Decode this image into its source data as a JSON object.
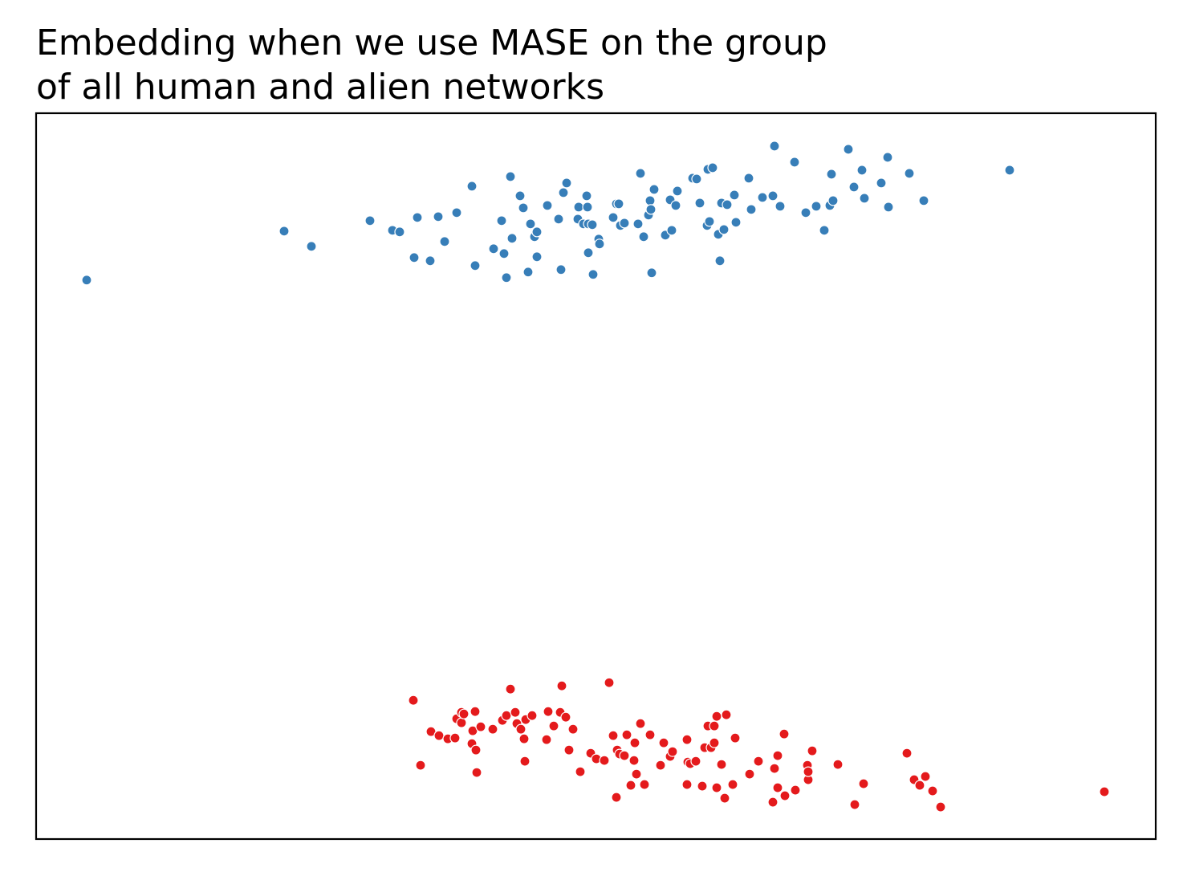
{
  "chart_data": {
    "type": "scatter",
    "title_lines": [
      "Embedding when we use MASE on the group",
      "of all human and alien networks"
    ],
    "xlabel": "",
    "ylabel": "",
    "xlim": [
      45,
      1440
    ],
    "ylim": [
      -1045,
      -140
    ],
    "grid": false,
    "show_ticks": false,
    "colors": {
      "human": "#377eb8",
      "alien": "#e41a1c",
      "frame": "#000000",
      "point_edge": "#ffffff"
    },
    "series": [
      {
        "color_key": "human",
        "points": [
          [
            108,
            -348
          ],
          [
            354,
            -287
          ],
          [
            388,
            -306
          ],
          [
            461,
            -274
          ],
          [
            489,
            -286
          ],
          [
            498,
            -288
          ],
          [
            516,
            -320
          ],
          [
            520,
            -270
          ],
          [
            536,
            -324
          ],
          [
            546,
            -269
          ],
          [
            554,
            -300
          ],
          [
            569,
            -264
          ],
          [
            588,
            -231
          ],
          [
            592,
            -330
          ],
          [
            615,
            -309
          ],
          [
            625,
            -274
          ],
          [
            628,
            -315
          ],
          [
            631,
            -345
          ],
          [
            636,
            -219
          ],
          [
            638,
            -296
          ],
          [
            648,
            -243
          ],
          [
            652,
            -258
          ],
          [
            658,
            -338
          ],
          [
            661,
            -278
          ],
          [
            666,
            -294
          ],
          [
            669,
            -288
          ],
          [
            669,
            -319
          ],
          [
            682,
            -255
          ],
          [
            696,
            -272
          ],
          [
            699,
            -335
          ],
          [
            702,
            -239
          ],
          [
            706,
            -227
          ],
          [
            720,
            -272
          ],
          [
            721,
            -257
          ],
          [
            727,
            -278
          ],
          [
            731,
            -243
          ],
          [
            732,
            -257
          ],
          [
            733,
            -314
          ],
          [
            733,
            -278
          ],
          [
            738,
            -279
          ],
          [
            739,
            -341
          ],
          [
            746,
            -297
          ],
          [
            747,
            -303
          ],
          [
            764,
            -270
          ],
          [
            768,
            -253
          ],
          [
            771,
            -253
          ],
          [
            773,
            -280
          ],
          [
            778,
            -277
          ],
          [
            795,
            -278
          ],
          [
            798,
            -215
          ],
          [
            802,
            -294
          ],
          [
            808,
            -267
          ],
          [
            810,
            -249
          ],
          [
            811,
            -260
          ],
          [
            812,
            -339
          ],
          [
            815,
            -235
          ],
          [
            829,
            -292
          ],
          [
            835,
            -248
          ],
          [
            837,
            -286
          ],
          [
            842,
            -255
          ],
          [
            844,
            -237
          ],
          [
            863,
            -221
          ],
          [
            868,
            -222
          ],
          [
            872,
            -252
          ],
          [
            881,
            -280
          ],
          [
            882,
            -210
          ],
          [
            884,
            -275
          ],
          [
            888,
            -208
          ],
          [
            895,
            -291
          ],
          [
            897,
            -324
          ],
          [
            899,
            -252
          ],
          [
            902,
            -285
          ],
          [
            906,
            -254
          ],
          [
            915,
            -242
          ],
          [
            917,
            -276
          ],
          [
            933,
            -221
          ],
          [
            936,
            -260
          ],
          [
            950,
            -245
          ],
          [
            963,
            -243
          ],
          [
            965,
            -181
          ],
          [
            972,
            -256
          ],
          [
            990,
            -201
          ],
          [
            1004,
            -264
          ],
          [
            1017,
            -256
          ],
          [
            1027,
            -286
          ],
          [
            1034,
            -255
          ],
          [
            1036,
            -216
          ],
          [
            1038,
            -249
          ],
          [
            1057,
            -185
          ],
          [
            1064,
            -232
          ],
          [
            1074,
            -211
          ],
          [
            1077,
            -246
          ],
          [
            1098,
            -227
          ],
          [
            1106,
            -195
          ],
          [
            1107,
            -257
          ],
          [
            1133,
            -215
          ],
          [
            1151,
            -249
          ],
          [
            1258,
            -211
          ]
        ]
      },
      {
        "color_key": "alien",
        "points": [
          [
            515,
            -872
          ],
          [
            524,
            -953
          ],
          [
            537,
            -911
          ],
          [
            547,
            -916
          ],
          [
            558,
            -920
          ],
          [
            567,
            -919
          ],
          [
            569,
            -895
          ],
          [
            575,
            -900
          ],
          [
            575,
            -887
          ],
          [
            578,
            -889
          ],
          [
            588,
            -926
          ],
          [
            589,
            -910
          ],
          [
            592,
            -886
          ],
          [
            593,
            -934
          ],
          [
            594,
            -962
          ],
          [
            599,
            -905
          ],
          [
            614,
            -908
          ],
          [
            626,
            -897
          ],
          [
            631,
            -891
          ],
          [
            636,
            -858
          ],
          [
            642,
            -887
          ],
          [
            644,
            -901
          ],
          [
            649,
            -908
          ],
          [
            653,
            -920
          ],
          [
            654,
            -948
          ],
          [
            655,
            -896
          ],
          [
            663,
            -891
          ],
          [
            681,
            -921
          ],
          [
            683,
            -886
          ],
          [
            690,
            -904
          ],
          [
            698,
            -887
          ],
          [
            700,
            -854
          ],
          [
            705,
            -893
          ],
          [
            709,
            -934
          ],
          [
            714,
            -908
          ],
          [
            723,
            -961
          ],
          [
            736,
            -938
          ],
          [
            743,
            -945
          ],
          [
            753,
            -947
          ],
          [
            759,
            -850
          ],
          [
            764,
            -916
          ],
          [
            768,
            -993
          ],
          [
            769,
            -934
          ],
          [
            772,
            -939
          ],
          [
            778,
            -941
          ],
          [
            781,
            -915
          ],
          [
            786,
            -978
          ],
          [
            790,
            -947
          ],
          [
            791,
            -925
          ],
          [
            793,
            -964
          ],
          [
            798,
            -901
          ],
          [
            803,
            -977
          ],
          [
            810,
            -915
          ],
          [
            823,
            -953
          ],
          [
            827,
            -925
          ],
          [
            835,
            -942
          ],
          [
            838,
            -936
          ],
          [
            856,
            -921
          ],
          [
            856,
            -977
          ],
          [
            857,
            -949
          ],
          [
            860,
            -951
          ],
          [
            867,
            -948
          ],
          [
            875,
            -979
          ],
          [
            878,
            -931
          ],
          [
            882,
            -904
          ],
          [
            886,
            -931
          ],
          [
            890,
            -904
          ],
          [
            890,
            -925
          ],
          [
            893,
            -892
          ],
          [
            893,
            -981
          ],
          [
            899,
            -952
          ],
          [
            903,
            -994
          ],
          [
            905,
            -890
          ],
          [
            913,
            -977
          ],
          [
            916,
            -919
          ],
          [
            934,
            -964
          ],
          [
            945,
            -948
          ],
          [
            963,
            -999
          ],
          [
            965,
            -957
          ],
          [
            969,
            -941
          ],
          [
            969,
            -981
          ],
          [
            977,
            -914
          ],
          [
            978,
            -991
          ],
          [
            991,
            -984
          ],
          [
            1006,
            -953
          ],
          [
            1007,
            -971
          ],
          [
            1007,
            -961
          ],
          [
            1012,
            -935
          ],
          [
            1044,
            -952
          ],
          [
            1065,
            -1002
          ],
          [
            1076,
            -976
          ],
          [
            1130,
            -938
          ],
          [
            1139,
            -971
          ],
          [
            1146,
            -978
          ],
          [
            1153,
            -967
          ],
          [
            1162,
            -985
          ],
          [
            1172,
            -1005
          ],
          [
            1376,
            -986
          ]
        ]
      }
    ]
  }
}
